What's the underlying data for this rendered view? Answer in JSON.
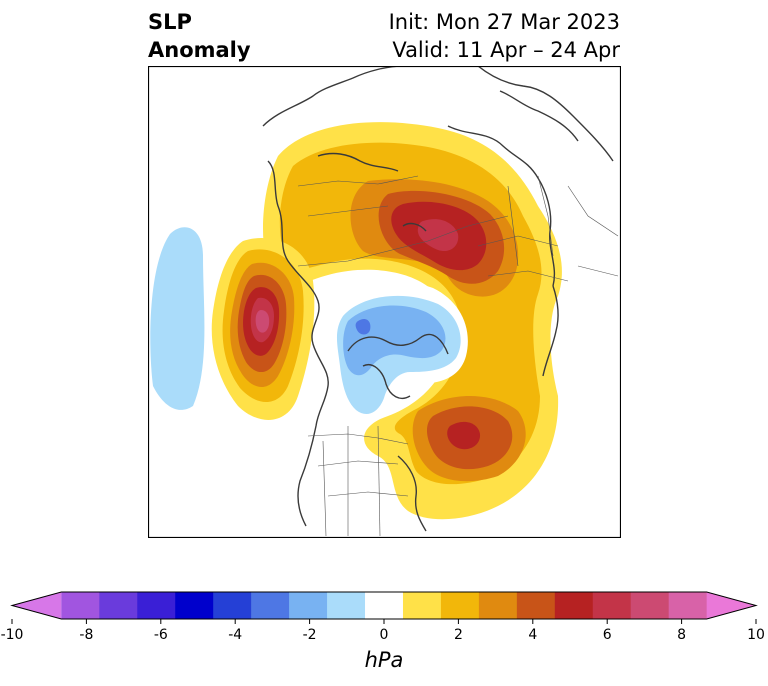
{
  "title": {
    "left_line1": "SLP",
    "left_line2": "Anomaly",
    "init": "Init: Mon 27 Mar 2023",
    "valid": "Valid: 11 Apr – 24 Apr"
  },
  "colorbar": {
    "unit": "hPa",
    "min": -10,
    "max": 10,
    "step": 1,
    "tick_labels": [
      "-10",
      "-8",
      "-6",
      "-4",
      "-2",
      "0",
      "2",
      "4",
      "6",
      "8",
      "10"
    ],
    "colors": [
      "#d777e8",
      "#a155e0",
      "#6a3bdc",
      "#3a1fd6",
      "#0000cc",
      "#2540d6",
      "#4e77e4",
      "#78b2f2",
      "#aadcfa",
      "#ffffff",
      "#ffe148",
      "#f2b70a",
      "#e08a10",
      "#c85418",
      "#b62222",
      "#c33448",
      "#cc4a72",
      "#d862a8",
      "#ea78d8"
    ],
    "extend": "both"
  },
  "map": {
    "projection": "north-polar-stereographic",
    "variable": "sea level pressure anomaly",
    "centers": [
      {
        "region": "Siberia / Kara Sea",
        "sign": "positive",
        "peak_hPa": 7
      },
      {
        "region": "Northeast Pacific / Gulf of Alaska",
        "sign": "positive",
        "peak_hPa": 8
      },
      {
        "region": "Western North Atlantic",
        "sign": "positive",
        "peak_hPa": 6
      },
      {
        "region": "Arctic / Canadian Archipelago",
        "sign": "negative",
        "peak_hPa": -4
      },
      {
        "region": "Central North Pacific",
        "sign": "negative",
        "peak_hPa": -2
      }
    ]
  }
}
